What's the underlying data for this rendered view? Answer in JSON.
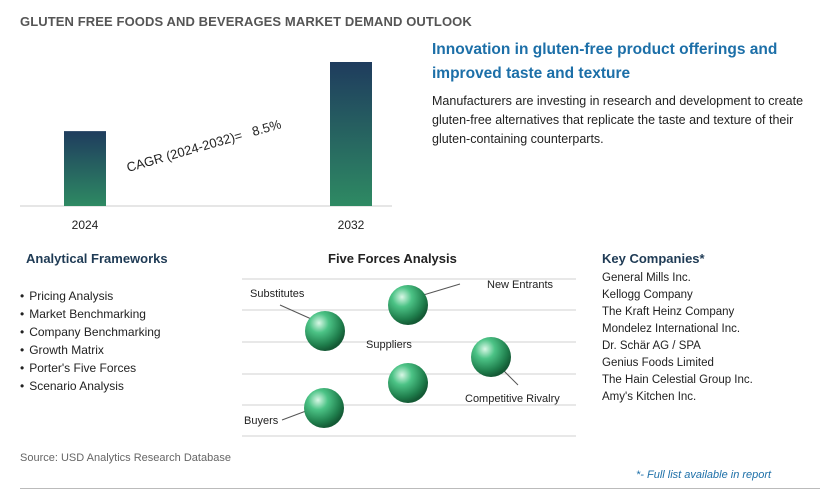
{
  "header": {
    "title": "GLUTEN FREE FOODS AND BEVERAGES MARKET DEMAND OUTLOOK"
  },
  "chart_data": {
    "type": "bar",
    "categories": [
      "2024",
      "2032"
    ],
    "values": [
      0.52,
      1.0
    ],
    "value_note": "relative bar heights; no value axis shown",
    "annotation": "CAGR (2024-2032)=   8.5%",
    "colors": {
      "bar_top": "#1f3c5e",
      "bar_bottom": "#2e8a63"
    }
  },
  "insight": {
    "headline": "Innovation in gluten-free product offerings and improved taste and texture",
    "description": "Manufacturers are investing in research and development to create gluten-free alternatives that replicate the taste and texture of their gluten-containing counterparts."
  },
  "frameworks": {
    "title": "Analytical Frameworks",
    "items": [
      "Pricing Analysis",
      "Market Benchmarking",
      "Company Benchmarking",
      "Growth Matrix",
      "Porter's Five Forces",
      "Scenario Analysis"
    ]
  },
  "five_forces": {
    "title": "Five Forces Analysis",
    "labels": {
      "substitutes": "Substitutes",
      "new_entrants": "New Entrants",
      "suppliers": "Suppliers",
      "competitive_rivalry": "Competitive Rivalry",
      "buyers": "Buyers"
    },
    "sphere_color": "#2ea36a"
  },
  "companies": {
    "title": "Key Companies*",
    "items": [
      "General Mills Inc.",
      "Kellogg Company",
      "The Kraft Heinz Company",
      "Mondelez International Inc.",
      "Dr. Schär AG / SPA",
      "Genius Foods Limited",
      "The Hain Celestial Group Inc.",
      "Amy's Kitchen Inc."
    ]
  },
  "footer": {
    "source": "Source: USD Analytics Research Database",
    "footnote": "*- Full list available in report"
  }
}
